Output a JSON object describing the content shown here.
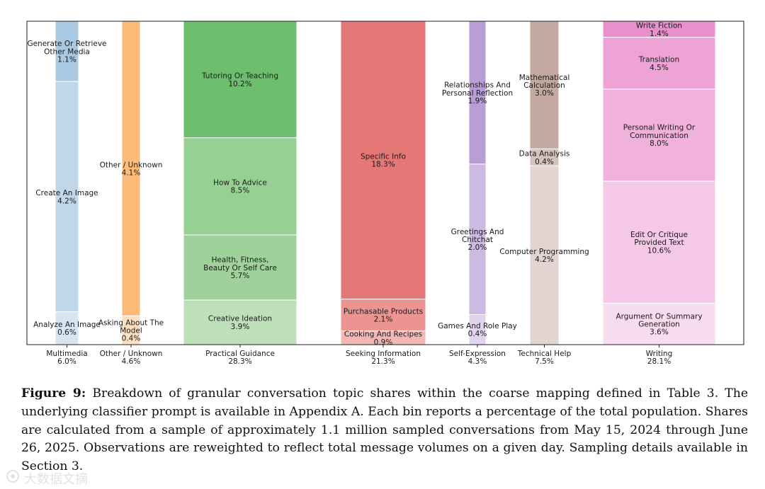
{
  "chart_data": {
    "type": "bar",
    "stacked": true,
    "orientation": "vertical-proportional",
    "ylim": [
      0,
      1
    ],
    "grid": false,
    "categories": [
      {
        "name": "Multimedia",
        "total": "6.0%",
        "color": "#9ec3df",
        "segments": [
          {
            "label": [
              "Generate Or Retrieve",
              "Other Media"
            ],
            "share": "1.1%",
            "value": 1.1,
            "shade": "#a9c9e2"
          },
          {
            "label": [
              "Create An Image"
            ],
            "share": "4.2%",
            "value": 4.2,
            "shade": "#c0d7ea"
          },
          {
            "label": [
              "Analyze An Image"
            ],
            "share": "0.6%",
            "value": 0.6,
            "shade": "#d6e5f2"
          }
        ]
      },
      {
        "name": "Other / Unknown",
        "total": "4.6%",
        "color": "#fdbb7a",
        "segments": [
          {
            "label": [
              "Other / Unknown"
            ],
            "share": "4.1%",
            "value": 4.1,
            "shade": "#fdbb7a"
          },
          {
            "label": [
              "Asking About The",
              "Model"
            ],
            "share": "0.4%",
            "value": 0.4,
            "shade": "#fde0c2"
          }
        ]
      },
      {
        "name": "Practical Guidance",
        "total": "28.3%",
        "color": "#6dbf6d",
        "segments": [
          {
            "label": [
              "Tutoring Or Teaching"
            ],
            "share": "10.2%",
            "value": 10.2,
            "shade": "#6dbf6d"
          },
          {
            "label": [
              "How To Advice"
            ],
            "share": "8.5%",
            "value": 8.5,
            "shade": "#97d093"
          },
          {
            "label": [
              "Health, Fitness,",
              "Beauty Or Self Care"
            ],
            "share": "5.7%",
            "value": 5.7,
            "shade": "#9fd29b"
          },
          {
            "label": [
              "Creative Ideation"
            ],
            "share": "3.9%",
            "value": 3.9,
            "shade": "#bde0b8"
          }
        ]
      },
      {
        "name": "Seeking Information",
        "total": "21.3%",
        "color": "#e57777",
        "segments": [
          {
            "label": [
              "Specific Info"
            ],
            "share": "18.3%",
            "value": 18.3,
            "shade": "#e57777"
          },
          {
            "label": [
              "Purchasable Products"
            ],
            "share": "2.1%",
            "value": 2.1,
            "shade": "#eb9492"
          },
          {
            "label": [
              "Cooking And Recipes"
            ],
            "share": "0.9%",
            "value": 0.9,
            "shade": "#f1b8b5"
          }
        ]
      },
      {
        "name": "Self-Expression",
        "total": "4.3%",
        "color": "#b99dd5",
        "segments": [
          {
            "label": [
              "Relationships And",
              "Personal Reflection"
            ],
            "share": "1.9%",
            "value": 1.9,
            "shade": "#b99dd5"
          },
          {
            "label": [
              "Greetings And",
              "Chitchat"
            ],
            "share": "2.0%",
            "value": 2.0,
            "shade": "#cdb9e2"
          },
          {
            "label": [
              "Games And Role Play"
            ],
            "share": "0.4%",
            "value": 0.4,
            "shade": "#e0d4ee"
          }
        ]
      },
      {
        "name": "Technical Help",
        "total": "7.5%",
        "color": "#c2a89f",
        "segments": [
          {
            "label": [
              "Mathematical",
              "Calculation"
            ],
            "share": "3.0%",
            "value": 3.0,
            "shade": "#c2a89f"
          },
          {
            "label": [
              "Data Analysis"
            ],
            "share": "0.4%",
            "value": 0.4,
            "shade": "#d5c2bc"
          },
          {
            "label": [
              "Computer Programming"
            ],
            "share": "4.2%",
            "value": 4.2,
            "shade": "#e2d5d1"
          }
        ]
      },
      {
        "name": "Writing",
        "total": "28.1%",
        "color": "#e88fcc",
        "segments": [
          {
            "label": [
              "Write Fiction"
            ],
            "share": "1.4%",
            "value": 1.4,
            "shade": "#e88fcc"
          },
          {
            "label": [
              "Translation"
            ],
            "share": "4.5%",
            "value": 4.5,
            "shade": "#eda3d6"
          },
          {
            "label": [
              "Personal Writing Or",
              "Communication"
            ],
            "share": "8.0%",
            "value": 8.0,
            "shade": "#f0b2dc"
          },
          {
            "label": [
              "Edit Or Critique",
              "Provided Text"
            ],
            "share": "10.6%",
            "value": 10.6,
            "shade": "#f4c8e6"
          },
          {
            "label": [
              "Argument Or Summary",
              "Generation"
            ],
            "share": "3.6%",
            "value": 3.6,
            "shade": "#f8dcef"
          }
        ]
      }
    ]
  },
  "caption": {
    "label": "Figure 9:",
    "text": "Breakdown of granular conversation topic shares within the coarse mapping defined in Table 3. The underlying classifier prompt is available in Appendix A. Each bin reports a percentage of the total population. Shares are calculated from a sample of approximately 1.1 million sampled conversations from May 15, 2024 through June 26, 2025. Observations are reweighted to reflect total message volumes on a given day. Sampling details available in Section 3."
  },
  "watermark": {
    "text": "大数据文摘"
  }
}
